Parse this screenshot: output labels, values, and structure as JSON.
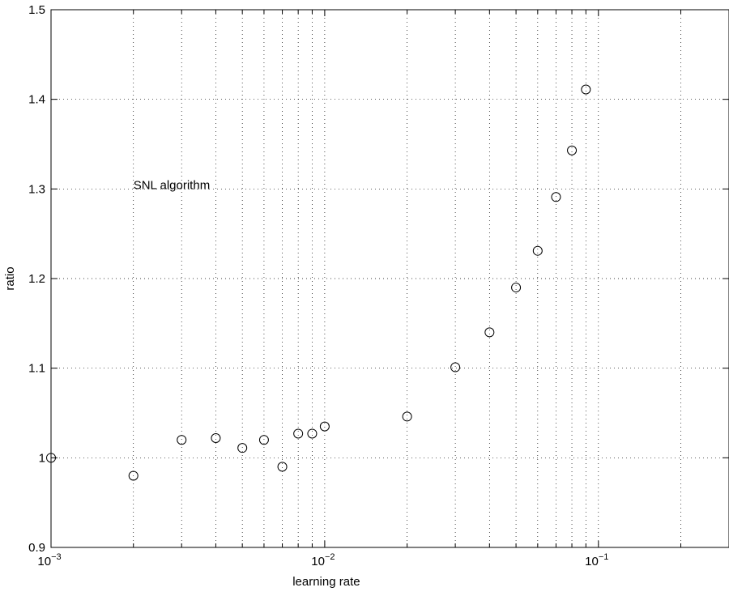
{
  "chart_data": {
    "type": "scatter",
    "xscale": "log",
    "xlim": [
      0.001,
      0.3
    ],
    "ylim": [
      0.9,
      1.5
    ],
    "grid": true,
    "xlabel": "learning rate",
    "ylabel": "ratio",
    "x_ticks": [
      {
        "value": 0.001,
        "base": "10",
        "exp": "−3"
      },
      {
        "value": 0.01,
        "base": "10",
        "exp": "−2"
      },
      {
        "value": 0.1,
        "base": "10",
        "exp": "−1"
      }
    ],
    "y_ticks": [
      {
        "value": 0.9,
        "label": "0.9"
      },
      {
        "value": 1.0,
        "label": "1"
      },
      {
        "value": 1.1,
        "label": "1.1"
      },
      {
        "value": 1.2,
        "label": "1.2"
      },
      {
        "value": 1.3,
        "label": "1.3"
      },
      {
        "value": 1.4,
        "label": "1.4"
      },
      {
        "value": 1.5,
        "label": "1.5"
      }
    ],
    "annotation": {
      "text": "SNL algorithm",
      "x": 0.002,
      "y": 1.3
    },
    "points": [
      {
        "x": 0.001,
        "y": 1.0
      },
      {
        "x": 0.002,
        "y": 0.98
      },
      {
        "x": 0.003,
        "y": 1.02
      },
      {
        "x": 0.004,
        "y": 1.022
      },
      {
        "x": 0.005,
        "y": 1.011
      },
      {
        "x": 0.006,
        "y": 1.02
      },
      {
        "x": 0.007,
        "y": 0.99
      },
      {
        "x": 0.008,
        "y": 1.027
      },
      {
        "x": 0.009,
        "y": 1.027
      },
      {
        "x": 0.01,
        "y": 1.035
      },
      {
        "x": 0.02,
        "y": 1.046
      },
      {
        "x": 0.03,
        "y": 1.101
      },
      {
        "x": 0.04,
        "y": 1.14
      },
      {
        "x": 0.05,
        "y": 1.19
      },
      {
        "x": 0.06,
        "y": 1.231
      },
      {
        "x": 0.07,
        "y": 1.291
      },
      {
        "x": 0.08,
        "y": 1.343
      },
      {
        "x": 0.09,
        "y": 1.411
      }
    ]
  }
}
